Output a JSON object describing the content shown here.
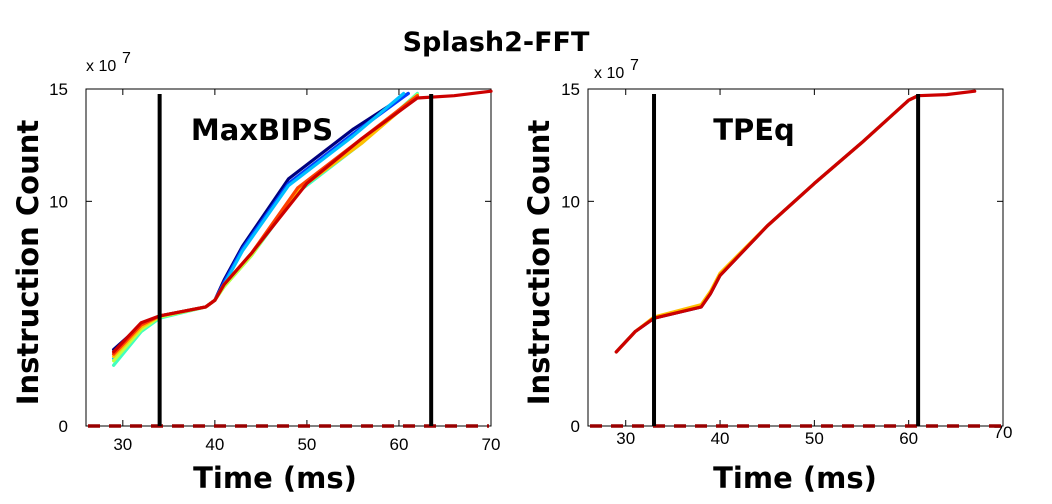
{
  "chart_data": {
    "title": "Splash2-FFT",
    "type": "line",
    "panels": [
      {
        "annotation": "MaxBIPS",
        "xlabel": "Time (ms)",
        "ylabel": "Instruction Count",
        "multiplier": "x 10",
        "multiplier_exponent": "7",
        "xlim": [
          26,
          70
        ],
        "ylim": [
          0,
          15
        ],
        "xticks": [
          "30",
          "40",
          "50",
          "60",
          "70"
        ],
        "yticks": [
          "0",
          "10",
          "15"
        ],
        "vlines": [
          34,
          63.5
        ],
        "baseline": 0,
        "baseline_color": "#990000",
        "series": [
          {
            "color": "#00007f",
            "x": [
              29,
              32,
              34,
              39,
              40,
              41,
              43,
              48,
              55,
              61
            ],
            "y": [
              3.4,
              4.5,
              4.9,
              5.3,
              5.6,
              6.5,
              8.0,
              11.0,
              13.2,
              14.8
            ]
          },
          {
            "color": "#0040ff",
            "x": [
              29,
              32,
              34,
              39,
              40,
              41,
              43,
              48,
              55,
              61
            ],
            "y": [
              3.2,
              4.4,
              4.9,
              5.3,
              5.6,
              6.4,
              7.9,
              10.8,
              13.0,
              14.8
            ]
          },
          {
            "color": "#00bfff",
            "x": [
              29,
              32,
              34,
              39,
              40,
              41,
              43,
              48,
              55,
              60.5
            ],
            "y": [
              3.0,
              4.3,
              4.85,
              5.3,
              5.6,
              6.3,
              7.8,
              10.7,
              12.9,
              14.8
            ]
          },
          {
            "color": "#40ffbf",
            "x": [
              29,
              32,
              34,
              39,
              40,
              41,
              44,
              49,
              56,
              62
            ],
            "y": [
              2.7,
              4.2,
              4.8,
              5.3,
              5.6,
              6.2,
              7.6,
              10.4,
              12.6,
              14.8
            ]
          },
          {
            "color": "#bfff40",
            "x": [
              29,
              32,
              34,
              39,
              40,
              41,
              44,
              49,
              56,
              62
            ],
            "y": [
              2.9,
              4.3,
              4.85,
              5.3,
              5.6,
              6.2,
              7.6,
              10.5,
              12.7,
              14.75
            ]
          },
          {
            "color": "#ffbf00",
            "x": [
              29,
              32,
              34,
              39,
              40,
              41,
              44,
              49,
              56,
              62
            ],
            "y": [
              3.1,
              4.4,
              4.9,
              5.3,
              5.6,
              6.3,
              7.7,
              10.5,
              12.6,
              14.7
            ]
          },
          {
            "color": "#ff4000",
            "x": [
              29,
              32,
              34,
              39,
              40,
              41,
              44,
              49,
              56,
              62
            ],
            "y": [
              3.2,
              4.5,
              4.9,
              5.3,
              5.6,
              6.3,
              7.7,
              10.6,
              12.8,
              14.7
            ]
          },
          {
            "color": "#cc0000",
            "x": [
              29,
              32,
              34,
              39,
              40,
              41,
              44,
              50,
              56,
              62,
              66,
              70
            ],
            "y": [
              3.3,
              4.6,
              4.9,
              5.3,
              5.6,
              6.3,
              7.7,
              10.8,
              12.8,
              14.6,
              14.7,
              14.9
            ]
          }
        ]
      },
      {
        "annotation": "TPEq",
        "xlabel": "Time (ms)",
        "ylabel": "Instruction Count",
        "multiplier": "x 10",
        "multiplier_exponent": "7",
        "xlim": [
          26,
          70
        ],
        "ylim": [
          0,
          15
        ],
        "xticks": [
          "30",
          "40",
          "50",
          "60",
          "70"
        ],
        "yticks": [
          "0",
          "10",
          "15"
        ],
        "vlines": [
          33,
          61
        ],
        "baseline": 0,
        "baseline_color": "#990000",
        "series": [
          {
            "color": "#00007f",
            "x": [
              29,
              31,
              33,
              38,
              39,
              40,
              45,
              50,
              55,
              60,
              61
            ],
            "y": [
              3.3,
              4.2,
              4.8,
              5.3,
              5.9,
              6.7,
              8.9,
              10.8,
              12.6,
              14.5,
              14.7
            ]
          },
          {
            "color": "#ffbf00",
            "x": [
              29,
              31,
              33,
              38,
              39,
              40,
              45,
              50,
              55,
              60,
              61
            ],
            "y": [
              3.3,
              4.2,
              4.85,
              5.4,
              6.0,
              6.8,
              8.9,
              10.8,
              12.6,
              14.5,
              14.7
            ]
          },
          {
            "color": "#cc0000",
            "x": [
              29,
              31,
              33,
              38,
              39,
              40,
              45,
              50,
              55,
              60,
              61,
              64,
              67
            ],
            "y": [
              3.3,
              4.2,
              4.8,
              5.3,
              5.9,
              6.7,
              8.9,
              10.8,
              12.6,
              14.5,
              14.7,
              14.75,
              14.9
            ]
          }
        ]
      }
    ]
  }
}
